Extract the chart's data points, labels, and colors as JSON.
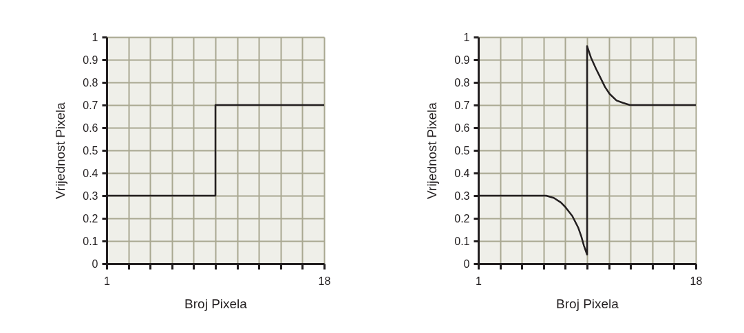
{
  "chart_data": [
    {
      "type": "step",
      "xlabel": "Broj Pixela",
      "ylabel": "Vrijednost Pixela",
      "series": [
        {
          "color": "#231f20",
          "x": [
            1,
            9.5,
            18
          ],
          "values": [
            0.3,
            0.7,
            0.7
          ]
        }
      ],
      "xlim": [
        1,
        18
      ],
      "ylim": [
        0,
        1
      ],
      "xticks": [
        1,
        {
          "value": 2.7,
          "label": null
        },
        {
          "value": 4.4,
          "label": null
        },
        {
          "value": 6.1,
          "label": null
        },
        {
          "value": 7.8,
          "label": null
        },
        {
          "value": 9.5,
          "label": null
        },
        {
          "value": 11.2,
          "label": null
        },
        {
          "value": 12.9,
          "label": null
        },
        {
          "value": 14.6,
          "label": null
        },
        {
          "value": 16.3,
          "label": null
        },
        18
      ],
      "yticks": [
        0,
        0.1,
        0.2,
        0.3,
        0.4,
        0.5,
        0.6,
        0.7,
        0.8,
        0.9,
        1
      ],
      "grid": true,
      "line_style": "solid"
    },
    {
      "type": "line",
      "xlabel": "Broj Pixela",
      "ylabel": "Vrijednost Pixela",
      "series": [
        {
          "color": "#231f20",
          "x": [
            1,
            6.3,
            6.9,
            7.45,
            7.8,
            8.35,
            8.8,
            9.05,
            9.25,
            9.5,
            9.5,
            9.8,
            10.2,
            10.55,
            10.9,
            11.25,
            11.8,
            12.3,
            12.85,
            18
          ],
          "values": [
            0.3,
            0.3,
            0.29,
            0.27,
            0.25,
            0.21,
            0.16,
            0.12,
            0.08,
            0.04,
            0.96,
            0.91,
            0.86,
            0.82,
            0.78,
            0.75,
            0.72,
            0.71,
            0.7,
            0.7
          ]
        }
      ],
      "xlim": [
        1,
        18
      ],
      "ylim": [
        0,
        1
      ],
      "xticks": [
        1,
        {
          "value": 2.7,
          "label": null
        },
        {
          "value": 4.4,
          "label": null
        },
        {
          "value": 6.1,
          "label": null
        },
        {
          "value": 7.8,
          "label": null
        },
        {
          "value": 9.5,
          "label": null
        },
        {
          "value": 11.2,
          "label": null
        },
        {
          "value": 12.9,
          "label": null
        },
        {
          "value": 14.6,
          "label": null
        },
        {
          "value": 16.3,
          "label": null
        },
        18
      ],
      "yticks": [
        0,
        0.1,
        0.2,
        0.3,
        0.4,
        0.5,
        0.6,
        0.7,
        0.8,
        0.9,
        1
      ],
      "grid": true,
      "line_style": "solid"
    }
  ]
}
